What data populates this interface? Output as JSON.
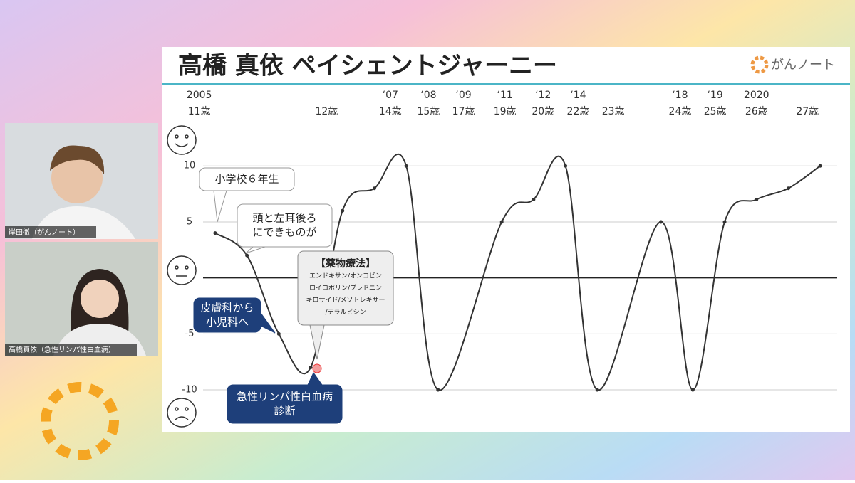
{
  "participants": [
    {
      "name": "岸田徹（がんノート）"
    },
    {
      "name": "高橋真依（急性リンパ性白血病）"
    }
  ],
  "logo": "がんノート",
  "chart_data": {
    "type": "line",
    "title": "高橋 真依 ペイシェントジャーニー",
    "x": [
      0,
      1,
      2,
      3,
      4,
      5,
      6,
      7,
      9,
      10,
      11,
      12,
      14,
      15,
      16,
      17,
      18,
      19
    ],
    "values": [
      4,
      2,
      -5,
      -8,
      6,
      8,
      10,
      -10,
      5,
      7,
      10,
      -10,
      5,
      -10,
      5,
      7,
      8,
      10
    ],
    "color": "#333333",
    "xlim": [
      -1.61,
      19.87
    ],
    "ylim": [
      -13.3,
      13.7
    ],
    "yticks": [
      -10,
      -5,
      5,
      10
    ],
    "baseline": 0,
    "grid": true,
    "xticks": [
      {
        "value": -0.5,
        "label": "11歳"
      },
      {
        "value": 3.5,
        "label": "12歳"
      },
      {
        "value": 5.5,
        "label": "14歳"
      },
      {
        "value": 6.7,
        "label": "15歳"
      },
      {
        "value": 7.8,
        "label": "17歳"
      },
      {
        "value": 9.1,
        "label": "19歳"
      },
      {
        "value": 10.3,
        "label": "20歳"
      },
      {
        "value": 11.4,
        "label": "22歳"
      },
      {
        "value": 12.5,
        "label": "23歳"
      },
      {
        "value": 14.6,
        "label": "24歳"
      },
      {
        "value": 15.7,
        "label": "25歳"
      },
      {
        "value": 17.0,
        "label": "26歳"
      },
      {
        "value": 18.6,
        "label": "27歳"
      }
    ],
    "year_ticks": [
      {
        "value": -0.5,
        "label": "2005"
      },
      {
        "value": 5.5,
        "label": "‘07"
      },
      {
        "value": 6.7,
        "label": "‘08"
      },
      {
        "value": 7.8,
        "label": "‘09"
      },
      {
        "value": 9.1,
        "label": "‘11"
      },
      {
        "value": 10.3,
        "label": "‘12"
      },
      {
        "value": 11.4,
        "label": "‘14"
      },
      {
        "value": 14.6,
        "label": "‘18"
      },
      {
        "value": 15.7,
        "label": "‘19"
      },
      {
        "value": 17.0,
        "label": "2020"
      }
    ],
    "annotations": [
      {
        "lines": [
          "小学校６年生"
        ]
      },
      {
        "lines": [
          "頭と左耳後ろ",
          "にできものが"
        ]
      },
      {
        "lines": [
          "【薬物療法】",
          "エンドキサン/オンコビン",
          "ロイコボリン/プレドニン",
          "キロサイド/メソトレキサー",
          "/テラルビシン"
        ]
      },
      {
        "lines": [
          "皮膚科から",
          "小児科へ"
        ]
      },
      {
        "lines": [
          "急性リンパ性白血病",
          "診断"
        ]
      }
    ]
  }
}
